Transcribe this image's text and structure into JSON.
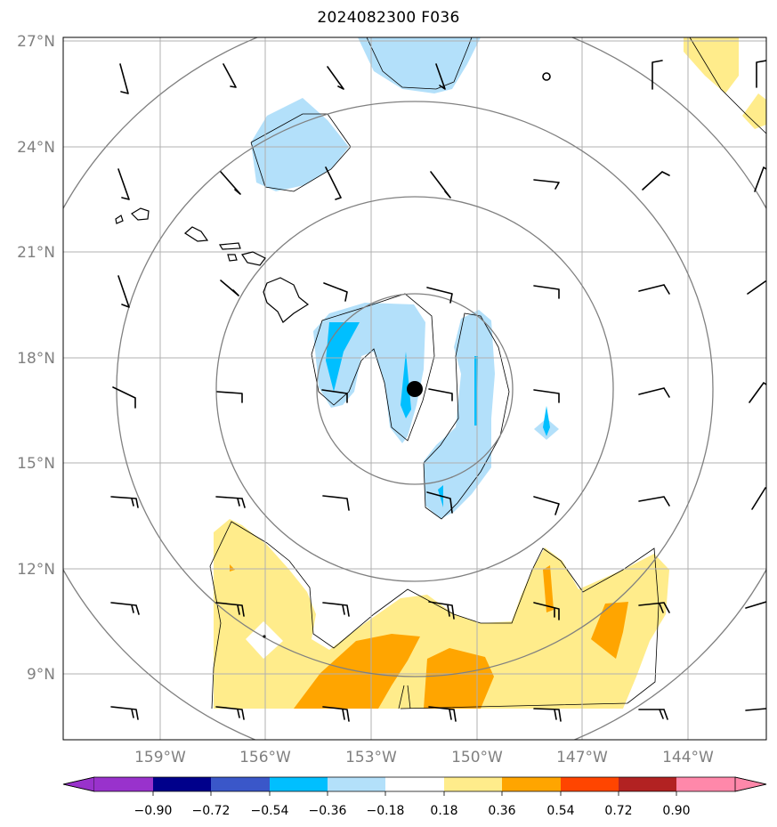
{
  "title": "2024082300 F036",
  "map": {
    "lat_labels": [
      "27°N",
      "24°N",
      "21°N",
      "18°N",
      "15°N",
      "12°N",
      "9°N"
    ],
    "lon_labels": [
      "159°W",
      "156°W",
      "153°W",
      "150°W",
      "147°W",
      "144°W"
    ],
    "extent": {
      "lon_min": -161.0,
      "lon_max": -141.0,
      "lat_min": 7.2,
      "lat_max": 27.0
    },
    "storm_center": {
      "lat": 17.1,
      "lon": -151.7
    },
    "colors": {
      "neg_light": "#b3e0fa",
      "neg_mid": "#00bfff",
      "pos_light": "#ffec8b",
      "pos_mid": "#ffa500"
    }
  },
  "colorbar": {
    "labels": [
      "−0.90",
      "−0.72",
      "−0.54",
      "−0.36",
      "−0.18",
      "0.18",
      "0.36",
      "0.54",
      "0.72",
      "0.90"
    ],
    "colors": [
      "#9932cc",
      "#00008b",
      "#3a57c9",
      "#00bfff",
      "#b3e0fa",
      "#ffffff",
      "#ffec8b",
      "#ffa500",
      "#ff4500",
      "#b22222",
      "#ff88aa"
    ]
  }
}
